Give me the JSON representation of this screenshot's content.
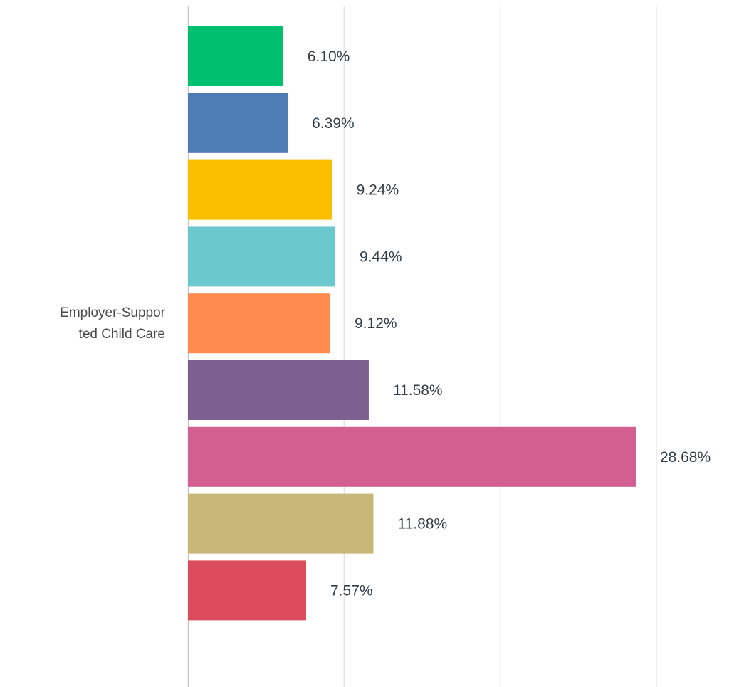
{
  "chart_data": {
    "type": "bar",
    "orientation": "horizontal",
    "categories": [
      "Employer-Supported Child Care"
    ],
    "category_label_lines": [
      "Employer-Suppor",
      "ted Child Care"
    ],
    "series": [
      {
        "value": 6.1,
        "label": "6.10%",
        "color": "#00bf6f"
      },
      {
        "value": 6.39,
        "label": "6.39%",
        "color": "#507cb6"
      },
      {
        "value": 9.24,
        "label": "9.24%",
        "color": "#f9be00"
      },
      {
        "value": 9.44,
        "label": "9.44%",
        "color": "#6bc8cd"
      },
      {
        "value": 9.12,
        "label": "9.12%",
        "color": "#ff8b4f"
      },
      {
        "value": 11.58,
        "label": "11.58%",
        "color": "#7f5f90"
      },
      {
        "value": 28.68,
        "label": "28.68%",
        "color": "#d25f90"
      },
      {
        "value": 11.88,
        "label": "11.88%",
        "color": "#c7b879"
      },
      {
        "value": 7.57,
        "label": "7.57%",
        "color": "#dc4c5c"
      }
    ],
    "xlim": [
      0,
      30
    ],
    "gridlines": [
      10,
      20,
      30
    ],
    "grid": true,
    "legend": "none",
    "title": "",
    "xlabel": "",
    "ylabel": ""
  }
}
